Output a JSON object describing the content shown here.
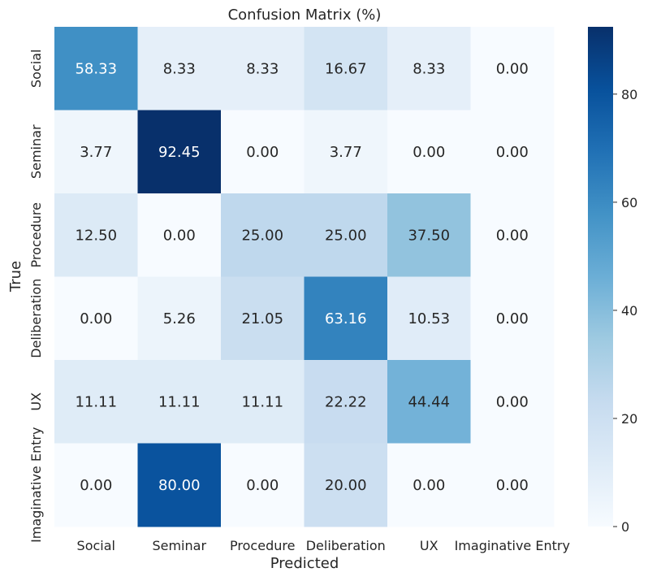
{
  "chart_data": {
    "type": "heatmap",
    "title": "Confusion Matrix (%)",
    "xlabel": "Predicted",
    "ylabel": "True",
    "x_categories": [
      "Social",
      "Seminar",
      "Procedure",
      "Deliberation",
      "UX",
      "Imaginative Entry"
    ],
    "y_categories": [
      "Social",
      "Seminar",
      "Procedure",
      "Deliberation",
      "UX",
      "Imaginative Entry"
    ],
    "values": [
      [
        58.33,
        8.33,
        8.33,
        16.67,
        8.33,
        0.0
      ],
      [
        3.77,
        92.45,
        0.0,
        3.77,
        0.0,
        0.0
      ],
      [
        12.5,
        0.0,
        25.0,
        25.0,
        37.5,
        0.0
      ],
      [
        0.0,
        5.26,
        21.05,
        63.16,
        10.53,
        0.0
      ],
      [
        11.11,
        11.11,
        11.11,
        22.22,
        44.44,
        0.0
      ],
      [
        0.0,
        80.0,
        0.0,
        20.0,
        0.0,
        0.0
      ]
    ],
    "value_format": "0.00",
    "colormap": "Blues",
    "colorbar": {
      "min": 0,
      "max": 92.45,
      "ticks": [
        0,
        20,
        40,
        60,
        80
      ]
    },
    "grid": false
  }
}
